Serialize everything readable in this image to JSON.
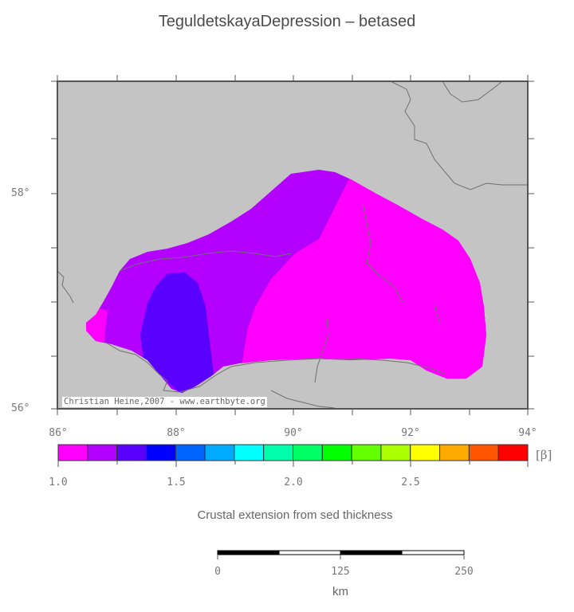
{
  "title": "TeguldetskayaDepression – betased",
  "map": {
    "lat_ticks": [
      "58°",
      "56°"
    ],
    "lon_ticks": [
      "86°",
      "88°",
      "90°",
      "92°",
      "94°"
    ],
    "credit": "Christian Heine,2007 - www.earthbyte.org",
    "background_color": "#c4c4c4",
    "frame_color": "#555555"
  },
  "colorbar": {
    "colors": [
      "#ff00ff",
      "#b400ff",
      "#5a00ff",
      "#0000ff",
      "#0064ff",
      "#00aaff",
      "#00ffff",
      "#00ffaa",
      "#00ff64",
      "#00ff00",
      "#64ff00",
      "#aaff00",
      "#ffff00",
      "#ffaa00",
      "#ff5500",
      "#ff0000"
    ],
    "tick_labels": [
      "1.0",
      "1.5",
      "2.0",
      "2.5"
    ],
    "unit": "[β]",
    "caption": "Crustal extension from sed thickness"
  },
  "scalebar": {
    "labels": [
      "0",
      "125",
      "250"
    ],
    "unit": "km"
  }
}
